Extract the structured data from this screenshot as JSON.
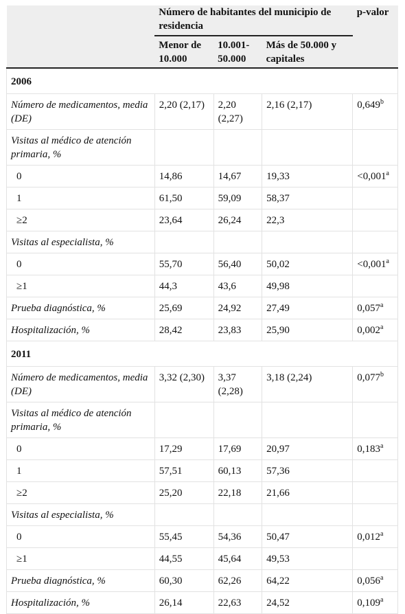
{
  "header": {
    "group_label": "Número de habitantes del municipio de residencia",
    "pvalue_label": "p-valor",
    "columns": [
      "Menor de 10.000",
      "10.001-50.000",
      "Más de 50.000 y capitales"
    ]
  },
  "sections": [
    {
      "year": "2006",
      "rows": [
        {
          "label": "Número de medicamentos, media (DE)",
          "values": [
            "2,20 (2,17)",
            "2,20 (2,27)",
            "2,16 (2,17)"
          ],
          "p": "0,649",
          "sup": "b"
        },
        {
          "label": "Visitas al médico de atención primaria, %",
          "values": [
            "",
            "",
            ""
          ],
          "p": "",
          "sup": ""
        },
        {
          "label": "0",
          "values": [
            "14,86",
            "14,67",
            "19,33"
          ],
          "p": "<0,001",
          "sup": "a"
        },
        {
          "label": "1",
          "values": [
            "61,50",
            "59,09",
            "58,37"
          ],
          "p": "",
          "sup": ""
        },
        {
          "label": "≥2",
          "values": [
            "23,64",
            "26,24",
            "22,3"
          ],
          "p": "",
          "sup": ""
        },
        {
          "label": "Visitas al especialista, %",
          "values": [
            "",
            "",
            ""
          ],
          "p": "",
          "sup": ""
        },
        {
          "label": "0",
          "values": [
            "55,70",
            "56,40",
            "50,02"
          ],
          "p": "<0,001",
          "sup": "a"
        },
        {
          "label": "≥1",
          "values": [
            "44,3",
            "43,6",
            "49,98"
          ],
          "p": "",
          "sup": ""
        },
        {
          "label": "Prueba diagnóstica, %",
          "values": [
            "25,69",
            "24,92",
            "27,49"
          ],
          "p": "0,057",
          "sup": "a"
        },
        {
          "label": "Hospitalización, %",
          "values": [
            "28,42",
            "23,83",
            "25,90"
          ],
          "p": "0,002",
          "sup": "a"
        }
      ]
    },
    {
      "year": "2011",
      "rows": [
        {
          "label": "Número de medicamentos, media (DE)",
          "values": [
            "3,32 (2,30)",
            "3,37 (2,28)",
            "3,18 (2,24)"
          ],
          "p": "0,077",
          "sup": "b"
        },
        {
          "label": "Visitas al médico de atención primaria, %",
          "values": [
            "",
            "",
            ""
          ],
          "p": "",
          "sup": ""
        },
        {
          "label": "0",
          "values": [
            "17,29",
            "17,69",
            "20,97"
          ],
          "p": "0,183",
          "sup": "a"
        },
        {
          "label": "1",
          "values": [
            "57,51",
            "60,13",
            "57,36"
          ],
          "p": "",
          "sup": ""
        },
        {
          "label": "≥2",
          "values": [
            "25,20",
            "22,18",
            "21,66"
          ],
          "p": "",
          "sup": ""
        },
        {
          "label": "Visitas al especialista, %",
          "values": [
            "",
            "",
            ""
          ],
          "p": "",
          "sup": ""
        },
        {
          "label": "0",
          "values": [
            "55,45",
            "54,36",
            "50,47"
          ],
          "p": "0,012",
          "sup": "a"
        },
        {
          "label": "≥1",
          "values": [
            "44,55",
            "45,64",
            "49,53"
          ],
          "p": "",
          "sup": ""
        },
        {
          "label": "Prueba diagnóstica, %",
          "values": [
            "60,30",
            "62,26",
            "64,22"
          ],
          "p": "0,056",
          "sup": "a"
        },
        {
          "label": "Hospitalización, %",
          "values": [
            "26,14",
            "22,63",
            "24,52"
          ],
          "p": "0,109",
          "sup": "a"
        }
      ]
    }
  ]
}
